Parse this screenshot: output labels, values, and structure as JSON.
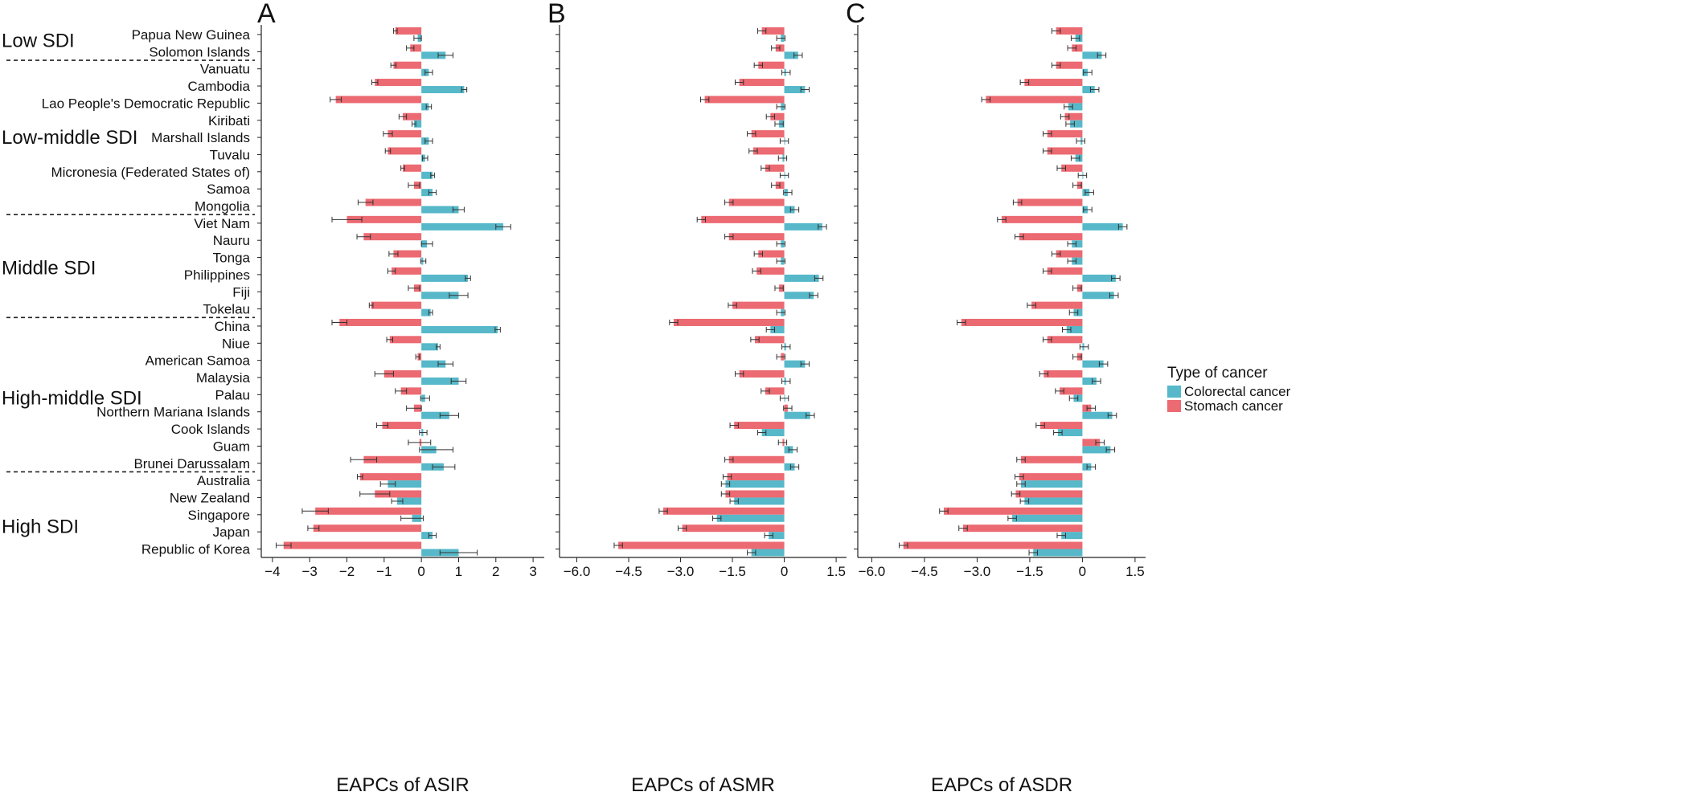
{
  "figure": {
    "legend_title": "Type of cancer",
    "groups": [
      "Low SDI",
      "Low-middle SDI",
      "Middle SDI",
      "High-middle SDI",
      "High SDI"
    ]
  },
  "colors": {
    "colorectal": "#56b8c9",
    "stomach": "#ec6a72"
  },
  "chart_data": [
    {
      "type": "bar",
      "orientation": "horizontal",
      "panel_label": "A",
      "xlabel": "EAPCs of ASIR",
      "xlim": [
        -4.3,
        3.3
      ],
      "xticks": [
        -4,
        -3,
        -2,
        -1,
        0,
        1,
        2,
        3
      ],
      "tick_labels": [
        "−4",
        "−3",
        "−2",
        "−1",
        "0",
        "1",
        "2",
        "3"
      ],
      "grid": false,
      "legend": "none",
      "categories": [
        "Papua New Guinea",
        "Solomon Islands",
        "Vanuatu",
        "Cambodia",
        "Lao People's Democratic Republic",
        "Kiribati",
        "Marshall Islands",
        "Tuvalu",
        "Micronesia (Federated States of)",
        "Samoa",
        "Mongolia",
        "Viet Nam",
        "Nauru",
        "Tonga",
        "Philippines",
        "Fiji",
        "Tokelau",
        "China",
        "Niue",
        "American Samoa",
        "Malaysia",
        "Palau",
        "Northern Mariana Islands",
        "Cook Islands",
        "Guam",
        "Brunei Darussalam",
        "Australia",
        "New Zealand",
        "Singapore",
        "Japan",
        "Republic of Korea"
      ],
      "series": [
        {
          "name": "Stomach cancer",
          "values": [
            -0.7,
            -0.3,
            -0.75,
            -1.25,
            -2.3,
            -0.5,
            -0.9,
            -0.9,
            -0.5,
            -0.2,
            -1.5,
            -2.0,
            -1.55,
            -0.75,
            -0.8,
            -0.2,
            -1.35,
            -2.2,
            -0.85,
            -0.1,
            -1.0,
            -0.55,
            -0.2,
            -1.05,
            -0.05,
            -1.55,
            -1.65,
            -1.25,
            -2.85,
            -2.9,
            -3.7
          ],
          "errors": [
            0.05,
            0.1,
            0.07,
            0.08,
            0.15,
            0.1,
            0.12,
            0.07,
            0.05,
            0.15,
            0.2,
            0.4,
            0.18,
            0.12,
            0.1,
            0.15,
            0.05,
            0.2,
            0.08,
            0.05,
            0.25,
            0.15,
            0.2,
            0.15,
            0.3,
            0.35,
            0.07,
            0.4,
            0.35,
            0.15,
            0.2
          ]
        },
        {
          "name": "Colorectal cancer",
          "values": [
            -0.1,
            0.65,
            0.2,
            1.15,
            0.2,
            -0.2,
            0.2,
            0.1,
            0.3,
            0.3,
            1.0,
            2.2,
            0.15,
            0.05,
            1.25,
            1.0,
            0.25,
            2.05,
            0.45,
            0.65,
            1.0,
            0.1,
            0.75,
            0.05,
            0.4,
            0.6,
            -0.9,
            -0.65,
            -0.25,
            0.3,
            1.0
          ],
          "errors": [
            0.1,
            0.2,
            0.1,
            0.07,
            0.07,
            0.05,
            0.1,
            0.07,
            0.05,
            0.1,
            0.15,
            0.2,
            0.15,
            0.07,
            0.07,
            0.25,
            0.05,
            0.07,
            0.05,
            0.2,
            0.2,
            0.12,
            0.25,
            0.1,
            0.45,
            0.3,
            0.2,
            0.15,
            0.3,
            0.1,
            0.5
          ]
        }
      ]
    },
    {
      "type": "bar",
      "orientation": "horizontal",
      "panel_label": "B",
      "xlabel": "EAPCs of ASMR",
      "xlim": [
        -6.5,
        1.8
      ],
      "xticks": [
        -6,
        -4.5,
        -3,
        -1.5,
        0,
        1.5
      ],
      "tick_labels": [
        "−6.0",
        "−4.5",
        "−3.0",
        "−1.5",
        "0",
        "1.5"
      ],
      "grid": false,
      "legend": "none",
      "categories": [
        "Papua New Guinea",
        "Solomon Islands",
        "Vanuatu",
        "Cambodia",
        "Lao People's Democratic Republic",
        "Kiribati",
        "Marshall Islands",
        "Tuvalu",
        "Micronesia (Federated States of)",
        "Samoa",
        "Mongolia",
        "Viet Nam",
        "Nauru",
        "Tonga",
        "Philippines",
        "Fiji",
        "Tokelau",
        "China",
        "Niue",
        "American Samoa",
        "Malaysia",
        "Palau",
        "Northern Mariana Islands",
        "Cook Islands",
        "Guam",
        "Brunei Darussalam",
        "Australia",
        "New Zealand",
        "Singapore",
        "Japan",
        "Republic of Korea"
      ],
      "series": [
        {
          "name": "Stomach cancer",
          "values": [
            -0.65,
            -0.25,
            -0.75,
            -1.3,
            -2.3,
            -0.4,
            -0.95,
            -0.9,
            -0.55,
            -0.25,
            -1.6,
            -2.4,
            -1.6,
            -0.75,
            -0.8,
            -0.15,
            -1.5,
            -3.2,
            -0.85,
            -0.1,
            -1.3,
            -0.55,
            0.1,
            -1.45,
            -0.05,
            -1.6,
            -1.65,
            -1.7,
            -3.5,
            -2.95,
            -4.8
          ]
        },
        {
          "name": "Colorectal cancer",
          "values": [
            -0.1,
            0.4,
            0.05,
            0.6,
            -0.1,
            -0.15,
            0.0,
            -0.05,
            0.0,
            0.1,
            0.3,
            1.1,
            -0.1,
            -0.1,
            1.0,
            0.85,
            -0.1,
            -0.4,
            0.05,
            0.6,
            0.05,
            0.0,
            0.75,
            -0.65,
            0.25,
            0.3,
            -1.7,
            -1.45,
            -1.95,
            -0.45,
            -0.95
          ]
        }
      ]
    },
    {
      "type": "bar",
      "orientation": "horizontal",
      "panel_label": "C",
      "xlabel": "EAPCs of ASDR",
      "xlim": [
        -6.4,
        1.8
      ],
      "xticks": [
        -6,
        -4.5,
        -3,
        -1.5,
        0,
        1.5
      ],
      "tick_labels": [
        "−6.0",
        "−4.5",
        "−3.0",
        "−1.5",
        "0",
        "1.5"
      ],
      "grid": false,
      "legend": "right",
      "categories": [
        "Papua New Guinea",
        "Solomon Islands",
        "Vanuatu",
        "Cambodia",
        "Lao People's Democratic Republic",
        "Kiribati",
        "Marshall Islands",
        "Tuvalu",
        "Micronesia (Federated States of)",
        "Samoa",
        "Mongolia",
        "Viet Nam",
        "Nauru",
        "Tonga",
        "Philippines",
        "Fiji",
        "Tokelau",
        "China",
        "Niue",
        "American Samoa",
        "Malaysia",
        "Palau",
        "Northern Mariana Islands",
        "Cook Islands",
        "Guam",
        "Brunei Darussalam",
        "Australia",
        "New Zealand",
        "Singapore",
        "Japan",
        "Republic of Korea"
      ],
      "series": [
        {
          "name": "Stomach cancer",
          "values": [
            -0.75,
            -0.3,
            -0.75,
            -1.65,
            -2.75,
            -0.5,
            -1.0,
            -1.0,
            -0.6,
            -0.15,
            -1.85,
            -2.3,
            -1.8,
            -0.75,
            -1.0,
            -0.15,
            -1.45,
            -3.45,
            -1.0,
            -0.15,
            -1.1,
            -0.65,
            0.25,
            -1.2,
            0.5,
            -1.75,
            -1.8,
            -1.9,
            -3.95,
            -3.4,
            -5.1
          ]
        },
        {
          "name": "Colorectal cancer",
          "values": [
            -0.2,
            0.55,
            0.15,
            0.35,
            -0.4,
            -0.35,
            -0.05,
            -0.2,
            0.0,
            0.2,
            0.15,
            1.15,
            -0.3,
            -0.3,
            0.95,
            0.9,
            -0.25,
            -0.45,
            0.05,
            0.6,
            0.4,
            -0.25,
            0.85,
            -0.7,
            0.8,
            0.25,
            -1.75,
            -1.65,
            -2.0,
            -0.6,
            -1.4
          ]
        }
      ]
    }
  ]
}
